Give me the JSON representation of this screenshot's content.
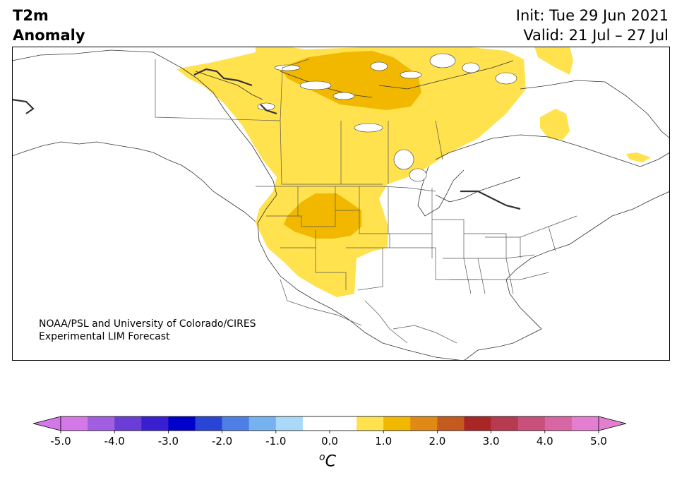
{
  "header": {
    "variable": "T2m",
    "field": "Anomaly",
    "init": "Init: Tue 29 Jun 2021",
    "valid": "Valid: 21 Jul – 27 Jul"
  },
  "credit": {
    "line1": "NOAA/PSL and University of Colorado/CIRES",
    "line2": "Experimental LIM Forecast"
  },
  "colorbar": {
    "unit_base": "C",
    "unit_sup": "o",
    "tick_labels": [
      "-5.0",
      "-4.0",
      "-3.0",
      "-2.0",
      "-1.0",
      "0.0",
      "1.0",
      "2.0",
      "3.0",
      "4.0",
      "5.0"
    ],
    "range": [
      -5.0,
      5.0
    ],
    "step": 0.5,
    "extend": "both",
    "colors": [
      "#d478e8",
      "#a15ee0",
      "#6a3ed6",
      "#3a1ed2",
      "#0000cc",
      "#2845d6",
      "#4f7ee6",
      "#76b2f0",
      "#a9d8f8",
      "#ffffff",
      "#ffffff",
      "#ffe24d",
      "#f2b800",
      "#de8a14",
      "#c45a1e",
      "#aa2626",
      "#b73a50",
      "#c9507a",
      "#d866a4",
      "#e47ed0"
    ],
    "under_color": "#d478e8",
    "over_color": "#e47ed0"
  },
  "map_layers": {
    "positive_anomaly_levels": [
      {
        "range": "0.5–1.0",
        "color": "#ffe24d"
      },
      {
        "range": "1.0–1.5",
        "color": "#f2b800"
      }
    ]
  }
}
